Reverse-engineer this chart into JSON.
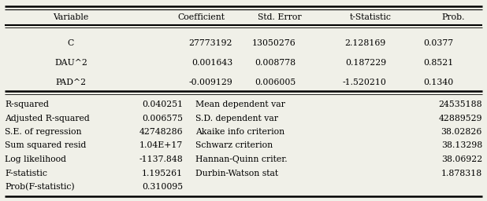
{
  "header": [
    "Variable",
    "Coefficient",
    "Std. Error",
    "t-Statistic",
    "Prob."
  ],
  "rows": [
    [
      "C",
      "27773192",
      "13050276",
      "2.128169",
      "0.0377"
    ],
    [
      "DAU^2",
      "0.001643",
      "0.008778",
      "0.187229",
      "0.8521"
    ],
    [
      "PAD^2",
      "-0.009129",
      "0.006005",
      "-1.520210",
      "0.1340"
    ]
  ],
  "stats_left": [
    [
      "R-squared",
      "0.040251"
    ],
    [
      "Adjusted R-squared",
      "0.006575"
    ],
    [
      "S.E. of regression",
      "42748286"
    ],
    [
      "Sum squared resid",
      "1.04E+17"
    ],
    [
      "Log likelihood",
      "-1137.848"
    ],
    [
      "F-statistic",
      "1.195261"
    ],
    [
      "Prob(F-statistic)",
      "0.310095"
    ]
  ],
  "stats_right": [
    [
      "Mean dependent var",
      "24535188"
    ],
    [
      "S.D. dependent var",
      "42889529"
    ],
    [
      "Akaike info criterion",
      "38.02826"
    ],
    [
      "Schwarz criterion",
      "38.13298"
    ],
    [
      "Hannan-Quinn criter.",
      "38.06922"
    ],
    [
      "Durbin-Watson stat",
      "1.878318"
    ],
    [
      "",
      ""
    ]
  ],
  "bg_color": "#f0f0e8",
  "font_size": 7.8,
  "font_family": "serif"
}
